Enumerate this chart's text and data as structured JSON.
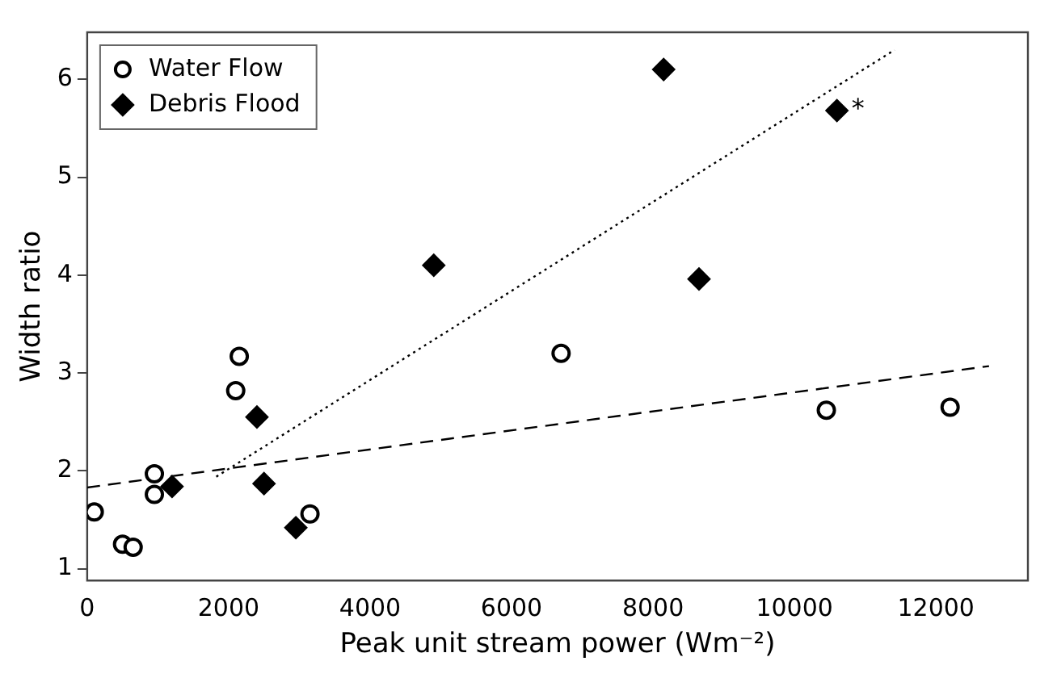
{
  "chart_data": {
    "type": "scatter",
    "xlabel": "Peak unit stream power (Wm⁻²)",
    "ylabel": "Width ratio",
    "xlim": [
      0,
      13300
    ],
    "xticks": [
      0,
      2000,
      4000,
      6000,
      8000,
      10000,
      12000
    ],
    "ylim": [
      0.88,
      6.48
    ],
    "yticks": [
      1,
      2,
      3,
      4,
      5,
      6
    ],
    "grid": false,
    "legend": "top left",
    "series": [
      {
        "name": "Water Flow",
        "marker": "circle",
        "color": "#000000",
        "x": [
          100,
          500,
          650,
          950,
          950,
          2100,
          2150,
          3150,
          6700,
          10450,
          12200
        ],
        "values": [
          1.58,
          1.25,
          1.22,
          1.97,
          1.76,
          2.82,
          3.17,
          1.56,
          3.2,
          2.62,
          2.65
        ]
      },
      {
        "name": "Debris Flood",
        "marker": "diamond",
        "color": "#000000",
        "x": [
          1200,
          2400,
          2500,
          2950,
          4900,
          8150,
          8650,
          10600
        ],
        "values": [
          1.84,
          2.55,
          1.87,
          1.42,
          4.1,
          6.1,
          3.96,
          5.68
        ]
      },
      {
        "type": "line",
        "marker": "none",
        "line_style": "dashed",
        "color": "#000000",
        "x": [
          0,
          12750
        ],
        "values": [
          1.83,
          3.07
        ]
      },
      {
        "type": "line",
        "marker": "none",
        "line_style": "dotted",
        "color": "#000000",
        "x": [
          1825,
          11415
        ],
        "values": [
          1.94,
          6.3
        ]
      }
    ],
    "annotations": [
      {
        "text": "*",
        "x": 10600,
        "y": 5.68
      }
    ]
  }
}
